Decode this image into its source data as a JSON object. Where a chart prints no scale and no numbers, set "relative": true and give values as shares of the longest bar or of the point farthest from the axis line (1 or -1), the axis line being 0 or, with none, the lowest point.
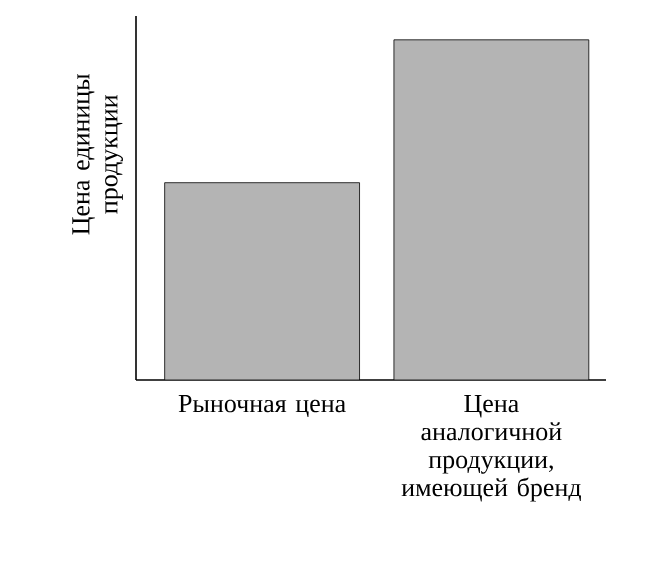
{
  "chart_data": {
    "type": "bar",
    "relative": true,
    "ylabel": "Цена единицы продукции",
    "categories": [
      "Рыночная цена",
      "Цена аналогичной продукции, имеющей бренд"
    ],
    "values": [
      0.58,
      1
    ],
    "color": "#b4b4b4"
  }
}
